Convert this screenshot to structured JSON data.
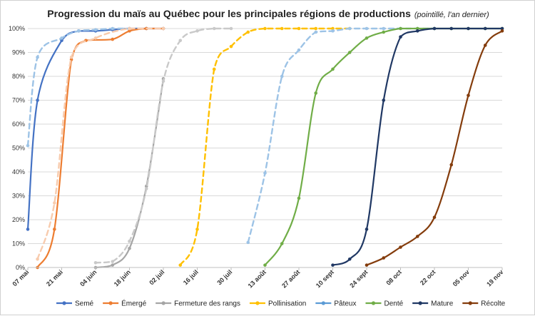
{
  "chart_data": {
    "type": "line",
    "title": "Progression du maïs au Québec pour les principales régions de productions",
    "subtitle": "(pointillé, l'an dernier)",
    "ylim": [
      0,
      100
    ],
    "yticks": [
      0,
      10,
      20,
      30,
      40,
      50,
      60,
      70,
      80,
      90,
      100
    ],
    "ytick_suffix": "%",
    "xlim": [
      0,
      196
    ],
    "xticks": [
      {
        "day": 0,
        "label": "07 mai"
      },
      {
        "day": 14,
        "label": "21 mai"
      },
      {
        "day": 28,
        "label": "04 juin"
      },
      {
        "day": 42,
        "label": "18 juin"
      },
      {
        "day": 56,
        "label": "02 juil"
      },
      {
        "day": 70,
        "label": "16 juil"
      },
      {
        "day": 84,
        "label": "30 juil"
      },
      {
        "day": 98,
        "label": "13 août"
      },
      {
        "day": 112,
        "label": "27 août"
      },
      {
        "day": 126,
        "label": "10 sept"
      },
      {
        "day": 140,
        "label": "24 sept"
      },
      {
        "day": 154,
        "label": "08 oct"
      },
      {
        "day": 168,
        "label": "22 oct"
      },
      {
        "day": 182,
        "label": "05 nov"
      },
      {
        "day": 196,
        "label": "19 nov"
      }
    ],
    "grid": true,
    "legend_position": "bottom",
    "series": [
      {
        "name": "Semé",
        "color": "#4472C4",
        "style": "solid",
        "points": [
          [
            0,
            16
          ],
          [
            4,
            70
          ],
          [
            14,
            95
          ],
          [
            21,
            99
          ],
          [
            28,
            99
          ],
          [
            35,
            99.5
          ],
          [
            42,
            100
          ],
          [
            49,
            100
          ],
          [
            56,
            100
          ]
        ]
      },
      {
        "name": "Semé",
        "color": "#9DC3E6",
        "style": "dashed",
        "legend": false,
        "points": [
          [
            0,
            51
          ],
          [
            4,
            88
          ],
          [
            14,
            96
          ],
          [
            21,
            99
          ],
          [
            28,
            99.5
          ],
          [
            35,
            100
          ],
          [
            42,
            100
          ]
        ]
      },
      {
        "name": "Émergé",
        "color": "#ED7D31",
        "style": "solid",
        "points": [
          [
            4,
            0
          ],
          [
            11,
            16
          ],
          [
            18,
            87
          ],
          [
            24,
            95
          ],
          [
            35,
            95.5
          ],
          [
            42,
            99
          ],
          [
            49,
            100
          ],
          [
            56,
            100
          ]
        ]
      },
      {
        "name": "Émergé",
        "color": "#F8CBAD",
        "style": "dashed",
        "legend": false,
        "points": [
          [
            4,
            3.5
          ],
          [
            11,
            27
          ],
          [
            18,
            88
          ],
          [
            28,
            96
          ],
          [
            42,
            100
          ],
          [
            56,
            100
          ]
        ]
      },
      {
        "name": "Fermeture des rangs",
        "color": "#A5A5A5",
        "style": "solid",
        "points": [
          [
            28,
            0
          ],
          [
            35,
            1
          ],
          [
            42,
            8
          ],
          [
            49,
            34
          ],
          [
            56,
            79
          ]
        ]
      },
      {
        "name": "Fermeture des rangs",
        "color": "#C9C9C9",
        "style": "dashed",
        "legend": false,
        "points": [
          [
            28,
            2
          ],
          [
            35,
            2.5
          ],
          [
            42,
            11
          ],
          [
            49,
            33
          ],
          [
            56,
            78
          ],
          [
            63,
            95
          ],
          [
            70,
            99
          ],
          [
            77,
            100
          ],
          [
            84,
            100
          ]
        ]
      },
      {
        "name": "Pollinisation",
        "color": "#FFC000",
        "style": "dashed",
        "points": [
          [
            63,
            1
          ],
          [
            70,
            16
          ],
          [
            77,
            83
          ],
          [
            84,
            92.5
          ],
          [
            91,
            98.5
          ],
          [
            98,
            100
          ],
          [
            105,
            100
          ],
          [
            112,
            100
          ],
          [
            119,
            100
          ],
          [
            126,
            100
          ],
          [
            133,
            100
          ]
        ]
      },
      {
        "name": "Pâteux",
        "color": "#9DC3E6",
        "style": "dashed",
        "points": [
          [
            91,
            10.5
          ],
          [
            98,
            39.5
          ],
          [
            105,
            80
          ],
          [
            112,
            91
          ],
          [
            119,
            98.5
          ],
          [
            126,
            99
          ],
          [
            133,
            100
          ],
          [
            140,
            100
          ],
          [
            147,
            100
          ],
          [
            154,
            100
          ],
          [
            161,
            100
          ],
          [
            168,
            100
          ]
        ]
      },
      {
        "name": "Denté",
        "color": "#70AD47",
        "style": "solid",
        "points": [
          [
            98,
            1
          ],
          [
            105,
            10
          ],
          [
            112,
            29
          ],
          [
            119,
            73
          ],
          [
            126,
            83
          ],
          [
            133,
            90
          ],
          [
            140,
            96
          ],
          [
            147,
            98.5
          ],
          [
            154,
            100
          ],
          [
            161,
            100
          ],
          [
            168,
            100
          ],
          [
            175,
            100
          ],
          [
            182,
            100
          ],
          [
            189,
            100
          ],
          [
            196,
            100
          ]
        ]
      },
      {
        "name": "Mature",
        "color": "#203864",
        "style": "solid",
        "points": [
          [
            126,
            1
          ],
          [
            133,
            3.5
          ],
          [
            140,
            16
          ],
          [
            147,
            70
          ],
          [
            154,
            96.5
          ],
          [
            161,
            99
          ],
          [
            168,
            100
          ],
          [
            175,
            100
          ],
          [
            182,
            100
          ],
          [
            189,
            100
          ],
          [
            196,
            100
          ]
        ]
      },
      {
        "name": "Récolte",
        "color": "#843C0C",
        "style": "solid",
        "points": [
          [
            140,
            1
          ],
          [
            147,
            4
          ],
          [
            154,
            8.5
          ],
          [
            161,
            13
          ],
          [
            168,
            21
          ],
          [
            175,
            43
          ],
          [
            182,
            72
          ],
          [
            189,
            93
          ],
          [
            196,
            99
          ]
        ]
      }
    ],
    "legend": [
      {
        "name": "Semé",
        "color": "#4472C4"
      },
      {
        "name": "Émergé",
        "color": "#ED7D31"
      },
      {
        "name": "Fermeture des rangs",
        "color": "#A5A5A5"
      },
      {
        "name": "Pollinisation",
        "color": "#FFC000"
      },
      {
        "name": "Pâteux",
        "color": "#5B9BD5"
      },
      {
        "name": "Denté",
        "color": "#70AD47"
      },
      {
        "name": "Mature",
        "color": "#203864"
      },
      {
        "name": "Récolte",
        "color": "#843C0C"
      }
    ]
  }
}
